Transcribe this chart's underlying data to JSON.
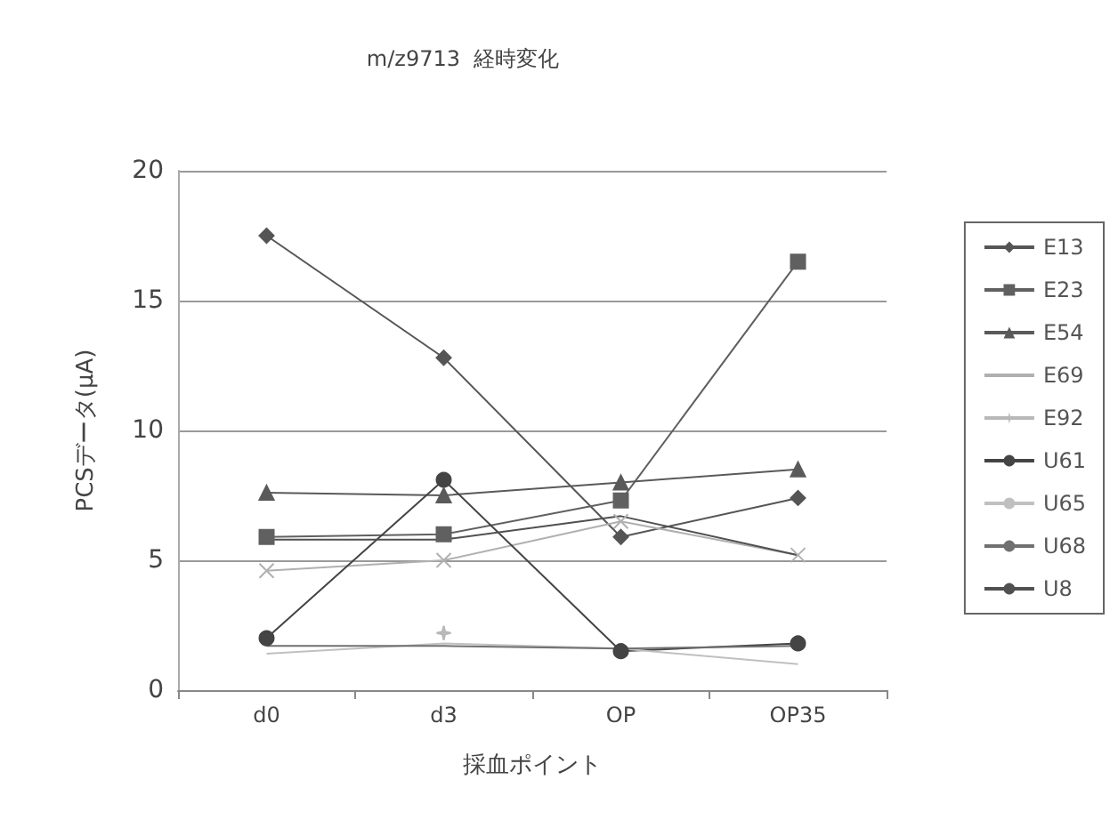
{
  "chart_data": {
    "type": "line",
    "title": "m/z9713  経時変化",
    "xlabel": "採血ポイント",
    "ylabel": "PCSデータ(μA)",
    "categories": [
      "d0",
      "d3",
      "OP",
      "OP35"
    ],
    "ylim": [
      0,
      20
    ],
    "yticks": [
      0,
      5,
      10,
      15,
      20
    ],
    "grid": "y",
    "legend": "right",
    "series": [
      {
        "name": "E13",
        "color": "#555555",
        "marker": "diamond",
        "values": [
          17.5,
          12.8,
          5.9,
          7.4
        ]
      },
      {
        "name": "E23",
        "color": "#606060",
        "marker": "square",
        "values": [
          5.9,
          6.0,
          7.3,
          16.5
        ]
      },
      {
        "name": "E54",
        "color": "#5a5a5a",
        "marker": "triangle",
        "values": [
          7.6,
          7.5,
          8.0,
          8.5
        ]
      },
      {
        "name": "E69",
        "color": "#b0b0b0",
        "marker": "cross",
        "values": [
          4.6,
          5.0,
          6.5,
          5.2
        ]
      },
      {
        "name": "E92",
        "color": "#b8b8b8",
        "marker": "star",
        "values": [
          null,
          2.2,
          null,
          null
        ]
      },
      {
        "name": "U61",
        "color": "#444444",
        "marker": "circle",
        "values": [
          2.0,
          8.1,
          1.5,
          1.8
        ]
      },
      {
        "name": "U65",
        "color": "#c0c0c0",
        "marker": "none",
        "values": [
          1.4,
          1.8,
          1.6,
          1.0
        ]
      },
      {
        "name": "U68",
        "color": "#707070",
        "marker": "none",
        "values": [
          1.7,
          1.7,
          1.6,
          1.7
        ]
      },
      {
        "name": "U8",
        "color": "#505050",
        "marker": "none",
        "values": [
          5.8,
          5.8,
          6.7,
          5.2
        ]
      }
    ]
  }
}
